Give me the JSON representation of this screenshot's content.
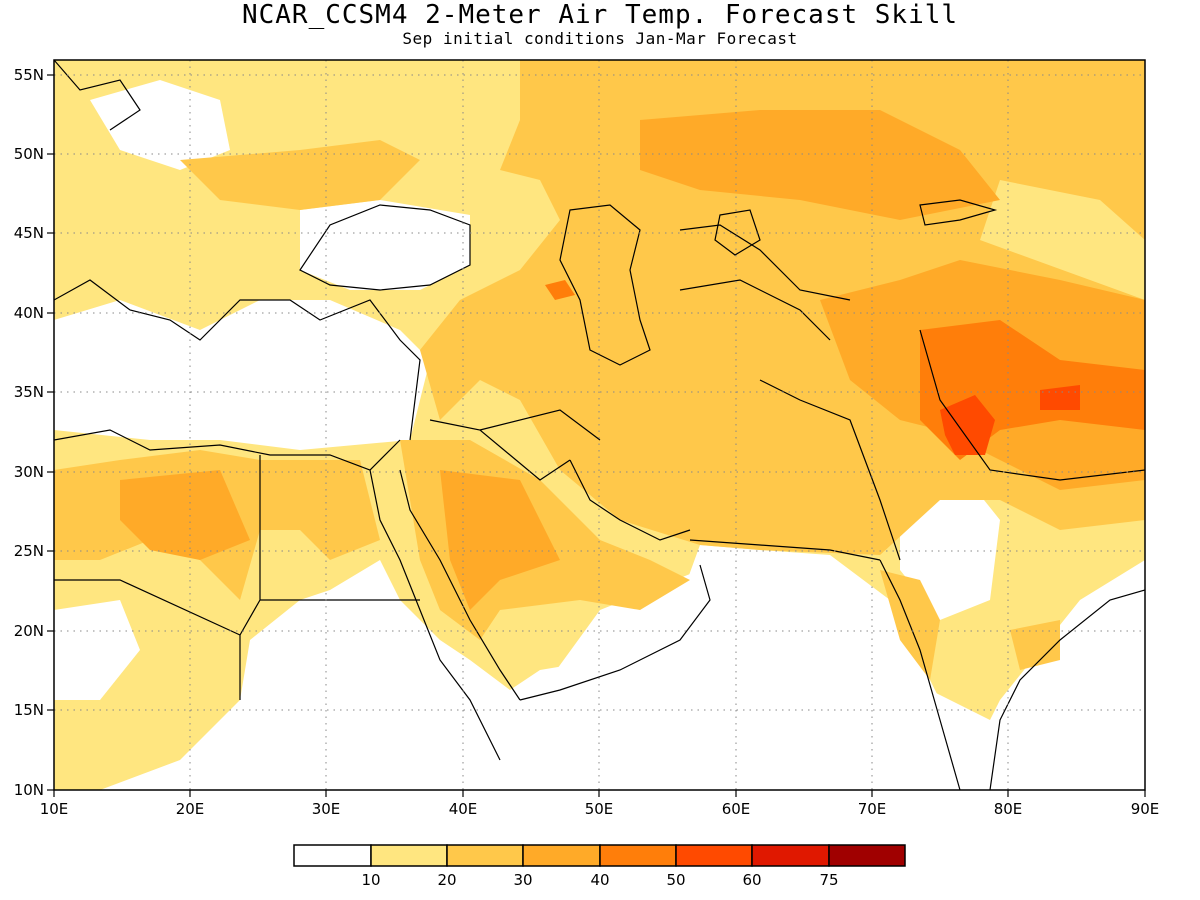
{
  "title": "NCAR_CCSM4 2-Meter Air Temp. Forecast Skill",
  "subtitle": "Sep initial conditions  Jan-Mar Forecast",
  "axes": {
    "lon_labels": [
      "10E",
      "20E",
      "30E",
      "40E",
      "50E",
      "60E",
      "70E",
      "80E",
      "90E"
    ],
    "lat_labels": [
      "55N",
      "50N",
      "45N",
      "40N",
      "35N",
      "30N",
      "25N",
      "20N",
      "15N",
      "10N"
    ]
  },
  "colorbar": {
    "colors": [
      "#ffffff",
      "#ffe680",
      "#ffc84a",
      "#ffaa28",
      "#ff7e0a",
      "#ff4a00",
      "#e01800",
      "#a00000"
    ],
    "labels": [
      "10",
      "20",
      "30",
      "40",
      "50",
      "60",
      "75"
    ]
  }
}
